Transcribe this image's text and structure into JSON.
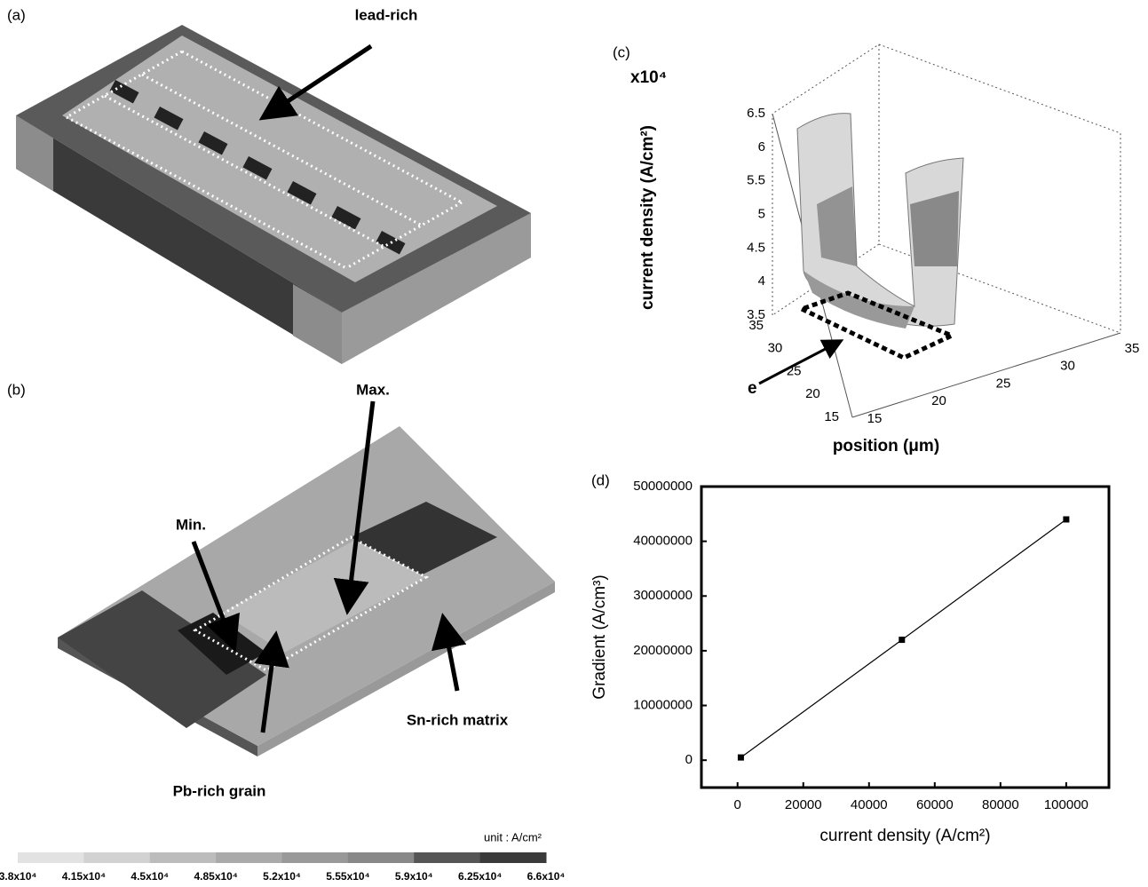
{
  "panels": {
    "a": {
      "label": "(a)",
      "annotation": "lead-rich"
    },
    "b": {
      "label": "(b)",
      "annotations": {
        "max": "Max.",
        "min": "Min.",
        "matrix": "Sn-rich matrix",
        "grain": "Pb-rich grain"
      }
    },
    "c": {
      "label": "(c)",
      "multiplier": "x10⁴",
      "zlabel": "current density (A/cm²)",
      "xlabel": "position (μm)",
      "marker": "e",
      "zticks": [
        3.5,
        4,
        4.5,
        5,
        5.5,
        6,
        6.5
      ],
      "depth_ticks": [
        35,
        30,
        25,
        20,
        15
      ],
      "width_ticks": [
        15,
        20,
        25,
        30,
        35
      ]
    },
    "d": {
      "label": "(d)"
    }
  },
  "colorbar": {
    "unit": "unit : A/cm²",
    "labels": [
      "3.8x10⁴",
      "4.15x10⁴",
      "4.5x10⁴",
      "4.85x10⁴",
      "5.2x10⁴",
      "5.55x10⁴",
      "5.9x10⁴",
      "6.25x10⁴",
      "6.6x10⁴"
    ]
  },
  "chart_data": {
    "type": "line",
    "xlabel": "current density (A/cm²)",
    "ylabel": "Gradient (A/cm³)",
    "x": [
      1000,
      50000,
      100000
    ],
    "values": [
      500000,
      22000000,
      44000000
    ],
    "color": "#000000",
    "xlim": [
      -11000,
      113000
    ],
    "ylim": [
      -5000000,
      50000000
    ],
    "xticks": [
      0,
      20000,
      40000,
      60000,
      80000,
      100000
    ],
    "yticks": [
      0,
      10000000,
      20000000,
      30000000,
      40000000,
      50000000
    ]
  }
}
